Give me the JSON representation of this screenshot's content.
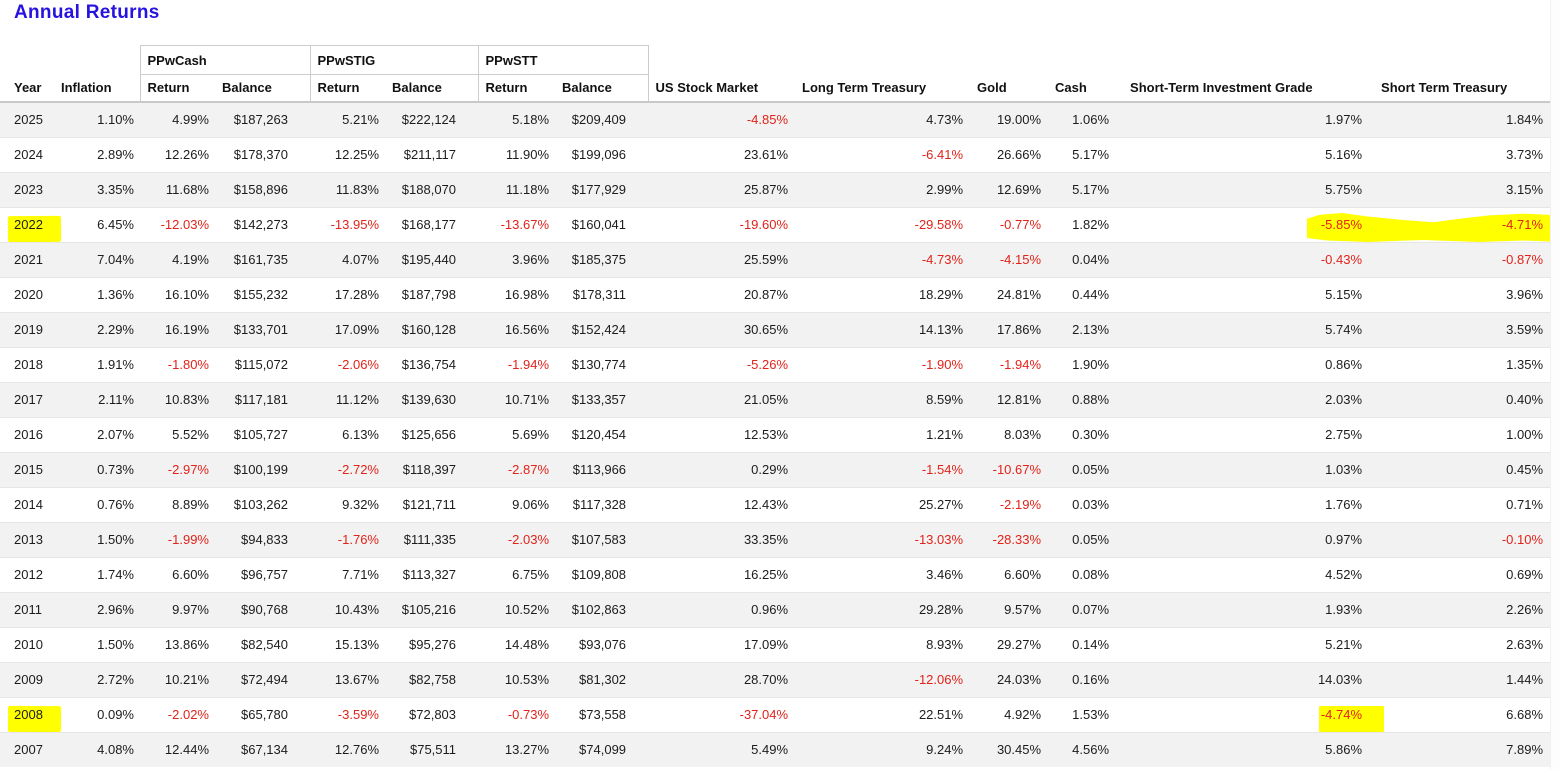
{
  "page": {
    "title": "Annual Returns"
  },
  "colors": {
    "title_accent": "#2713e0",
    "negative_value": "#e2231a",
    "highlight_marker": "#ffff00",
    "row_stripe": "#f2f2f2"
  },
  "table": {
    "groups": [
      {
        "label": "PPwCash"
      },
      {
        "label": "PPwSTIG"
      },
      {
        "label": "PPwSTT"
      }
    ],
    "columns": [
      "Year",
      "Inflation",
      "Return",
      "Balance",
      "Return",
      "Balance",
      "Return",
      "Balance",
      "US Stock Market",
      "Long Term Treasury",
      "Gold",
      "Cash",
      "Short-Term Investment Grade",
      "Short Term Treasury"
    ],
    "rows": [
      {
        "year": "2025",
        "values": [
          "1.10%",
          "4.99%",
          "$187,263",
          "5.21%",
          "$222,124",
          "5.18%",
          "$209,409",
          "-4.85%",
          "4.73%",
          "19.00%",
          "1.06%",
          "1.97%",
          "1.84%"
        ]
      },
      {
        "year": "2024",
        "values": [
          "2.89%",
          "12.26%",
          "$178,370",
          "12.25%",
          "$211,117",
          "11.90%",
          "$199,096",
          "23.61%",
          "-6.41%",
          "26.66%",
          "5.17%",
          "5.16%",
          "3.73%"
        ]
      },
      {
        "year": "2023",
        "values": [
          "3.35%",
          "11.68%",
          "$158,896",
          "11.83%",
          "$188,070",
          "11.18%",
          "$177,929",
          "25.87%",
          "2.99%",
          "12.69%",
          "5.17%",
          "5.75%",
          "3.15%"
        ]
      },
      {
        "year": "2022",
        "values": [
          "6.45%",
          "-12.03%",
          "$142,273",
          "-13.95%",
          "$168,177",
          "-13.67%",
          "$160,041",
          "-19.60%",
          "-29.58%",
          "-0.77%",
          "1.82%",
          "-5.85%",
          "-4.71%"
        ]
      },
      {
        "year": "2021",
        "values": [
          "7.04%",
          "4.19%",
          "$161,735",
          "4.07%",
          "$195,440",
          "3.96%",
          "$185,375",
          "25.59%",
          "-4.73%",
          "-4.15%",
          "0.04%",
          "-0.43%",
          "-0.87%"
        ]
      },
      {
        "year": "2020",
        "values": [
          "1.36%",
          "16.10%",
          "$155,232",
          "17.28%",
          "$187,798",
          "16.98%",
          "$178,311",
          "20.87%",
          "18.29%",
          "24.81%",
          "0.44%",
          "5.15%",
          "3.96%"
        ]
      },
      {
        "year": "2019",
        "values": [
          "2.29%",
          "16.19%",
          "$133,701",
          "17.09%",
          "$160,128",
          "16.56%",
          "$152,424",
          "30.65%",
          "14.13%",
          "17.86%",
          "2.13%",
          "5.74%",
          "3.59%"
        ]
      },
      {
        "year": "2018",
        "values": [
          "1.91%",
          "-1.80%",
          "$115,072",
          "-2.06%",
          "$136,754",
          "-1.94%",
          "$130,774",
          "-5.26%",
          "-1.90%",
          "-1.94%",
          "1.90%",
          "0.86%",
          "1.35%"
        ]
      },
      {
        "year": "2017",
        "values": [
          "2.11%",
          "10.83%",
          "$117,181",
          "11.12%",
          "$139,630",
          "10.71%",
          "$133,357",
          "21.05%",
          "8.59%",
          "12.81%",
          "0.88%",
          "2.03%",
          "0.40%"
        ]
      },
      {
        "year": "2016",
        "values": [
          "2.07%",
          "5.52%",
          "$105,727",
          "6.13%",
          "$125,656",
          "5.69%",
          "$120,454",
          "12.53%",
          "1.21%",
          "8.03%",
          "0.30%",
          "2.75%",
          "1.00%"
        ]
      },
      {
        "year": "2015",
        "values": [
          "0.73%",
          "-2.97%",
          "$100,199",
          "-2.72%",
          "$118,397",
          "-2.87%",
          "$113,966",
          "0.29%",
          "-1.54%",
          "-10.67%",
          "0.05%",
          "1.03%",
          "0.45%"
        ]
      },
      {
        "year": "2014",
        "values": [
          "0.76%",
          "8.89%",
          "$103,262",
          "9.32%",
          "$121,711",
          "9.06%",
          "$117,328",
          "12.43%",
          "25.27%",
          "-2.19%",
          "0.03%",
          "1.76%",
          "0.71%"
        ]
      },
      {
        "year": "2013",
        "values": [
          "1.50%",
          "-1.99%",
          "$94,833",
          "-1.76%",
          "$111,335",
          "-2.03%",
          "$107,583",
          "33.35%",
          "-13.03%",
          "-28.33%",
          "0.05%",
          "0.97%",
          "-0.10%"
        ]
      },
      {
        "year": "2012",
        "values": [
          "1.74%",
          "6.60%",
          "$96,757",
          "7.71%",
          "$113,327",
          "6.75%",
          "$109,808",
          "16.25%",
          "3.46%",
          "6.60%",
          "0.08%",
          "4.52%",
          "0.69%"
        ]
      },
      {
        "year": "2011",
        "values": [
          "2.96%",
          "9.97%",
          "$90,768",
          "10.43%",
          "$105,216",
          "10.52%",
          "$102,863",
          "0.96%",
          "29.28%",
          "9.57%",
          "0.07%",
          "1.93%",
          "2.26%"
        ]
      },
      {
        "year": "2010",
        "values": [
          "1.50%",
          "13.86%",
          "$82,540",
          "15.13%",
          "$95,276",
          "14.48%",
          "$93,076",
          "17.09%",
          "8.93%",
          "29.27%",
          "0.14%",
          "5.21%",
          "2.63%"
        ]
      },
      {
        "year": "2009",
        "values": [
          "2.72%",
          "10.21%",
          "$72,494",
          "13.67%",
          "$82,758",
          "10.53%",
          "$81,302",
          "28.70%",
          "-12.06%",
          "24.03%",
          "0.16%",
          "14.03%",
          "1.44%"
        ]
      },
      {
        "year": "2008",
        "values": [
          "0.09%",
          "-2.02%",
          "$65,780",
          "-3.59%",
          "$72,803",
          "-0.73%",
          "$73,558",
          "-37.04%",
          "22.51%",
          "4.92%",
          "1.53%",
          "-4.74%",
          "6.68%"
        ]
      },
      {
        "year": "2007",
        "values": [
          "4.08%",
          "12.44%",
          "$67,134",
          "12.76%",
          "$75,511",
          "13.27%",
          "$74,099",
          "5.49%",
          "9.24%",
          "30.45%",
          "4.56%",
          "5.86%",
          "7.89%"
        ]
      }
    ],
    "highlights": [
      {
        "row": "2022",
        "columns": [
          "Year"
        ],
        "style": "yellow-marker"
      },
      {
        "row": "2022",
        "columns": [
          "Short-Term Investment Grade",
          "Short Term Treasury"
        ],
        "style": "yellow-marker-stroke-to-right-edge"
      },
      {
        "row": "2008",
        "columns": [
          "Year"
        ],
        "style": "yellow-marker"
      },
      {
        "row": "2008",
        "columns": [
          "Short-Term Investment Grade"
        ],
        "style": "yellow-marker"
      }
    ]
  }
}
